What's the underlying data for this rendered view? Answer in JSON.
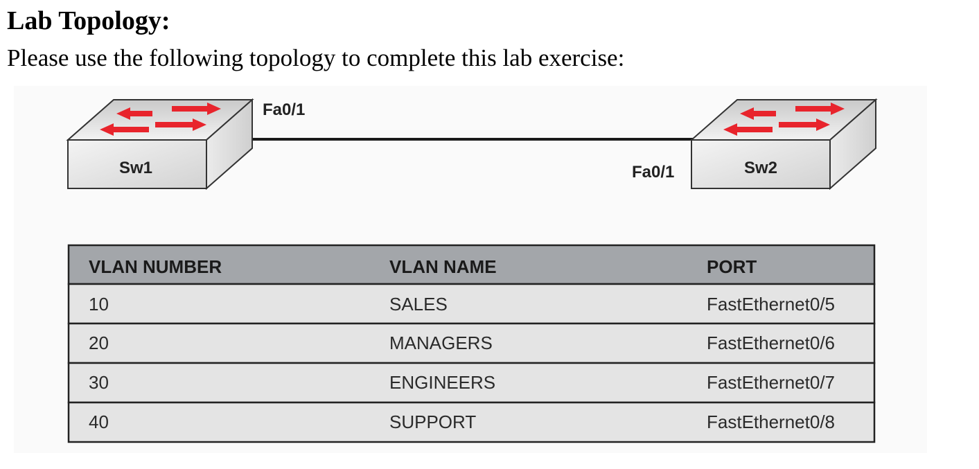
{
  "page": {
    "heading": "Lab Topology:",
    "intro": "Please use the following topology to complete this lab exercise:"
  },
  "topology": {
    "switches": [
      {
        "name": "Sw1",
        "port": "Fa0/1"
      },
      {
        "name": "Sw2",
        "port": "Fa0/1"
      }
    ],
    "arrow_color": "#e8242c",
    "link_color": "#1a1a1a"
  },
  "vlan_table": {
    "headers": [
      "VLAN NUMBER",
      "VLAN NAME",
      "PORT"
    ],
    "rows": [
      [
        "10",
        "SALES",
        "FastEthernet0/5"
      ],
      [
        "20",
        "MANAGERS",
        "FastEthernet0/6"
      ],
      [
        "30",
        "ENGINEERS",
        "FastEthernet0/7"
      ],
      [
        "40",
        "SUPPORT",
        "FastEthernet0/8"
      ]
    ],
    "header_bg": "#a3a6aa",
    "row_bg": "#e4e4e4"
  }
}
